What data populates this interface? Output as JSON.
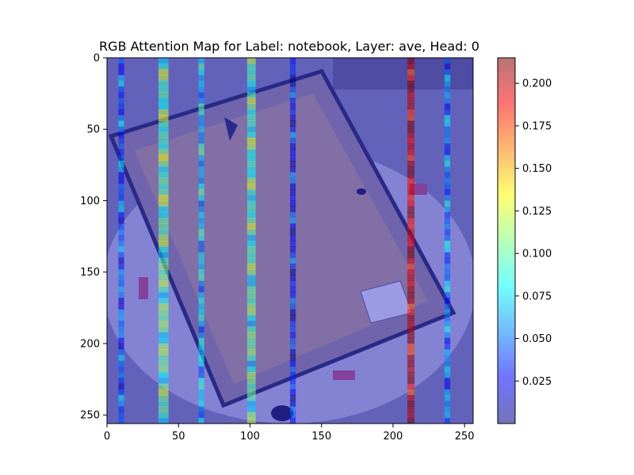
{
  "chart_data": {
    "type": "heatmap",
    "title": "RGB Attention Map for Label: notebook, Layer: ave, Head: 0",
    "xlabel": "",
    "ylabel": "",
    "xlim": [
      0,
      256
    ],
    "ylim": [
      256,
      0
    ],
    "x_ticks": [
      0,
      50,
      100,
      150,
      200,
      250
    ],
    "y_ticks": [
      0,
      50,
      100,
      150,
      200,
      250
    ],
    "grid": false,
    "background_image": "photo of a spiral notebook on a round white surface, viewed from above",
    "colormap": "jet",
    "colorbar": {
      "range": [
        0.0,
        0.215
      ],
      "ticks": [
        0.025,
        0.05,
        0.075,
        0.1,
        0.125,
        0.15,
        0.175,
        0.2
      ],
      "tick_labels": [
        "0.025",
        "0.050",
        "0.075",
        "0.100",
        "0.125",
        "0.150",
        "0.175",
        "0.200"
      ]
    },
    "attention_columns": [
      {
        "x_start": 8,
        "x_end": 12,
        "mean_value": 0.045
      },
      {
        "x_start": 36,
        "x_end": 43,
        "mean_value": 0.1
      },
      {
        "x_start": 64,
        "x_end": 68,
        "mean_value": 0.07
      },
      {
        "x_start": 98,
        "x_end": 104,
        "mean_value": 0.095
      },
      {
        "x_start": 128,
        "x_end": 132,
        "mean_value": 0.03
      },
      {
        "x_start": 210,
        "x_end": 215,
        "mean_value": 0.2
      },
      {
        "x_start": 236,
        "x_end": 240,
        "mean_value": 0.055
      }
    ]
  }
}
